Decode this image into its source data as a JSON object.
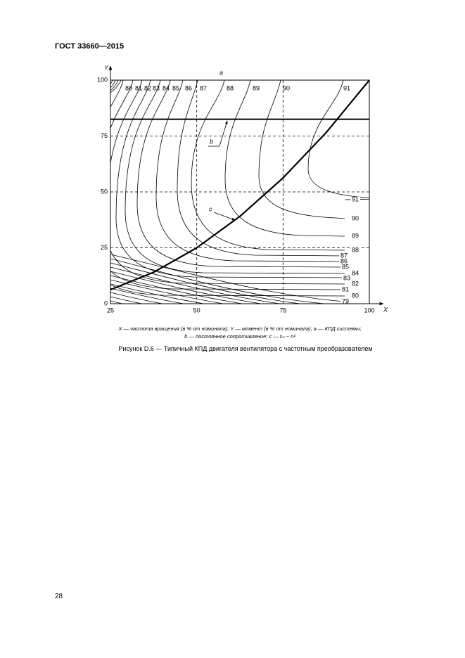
{
  "header": {
    "title": "ГОСТ 33660—2015"
  },
  "chart_data": {
    "type": "contour",
    "x_label": "X",
    "y_label": "Y",
    "xlim": [
      25,
      100
    ],
    "ylim": [
      0,
      100
    ],
    "xticks": [
      25,
      50,
      75,
      100
    ],
    "yticks": [
      0,
      25,
      50,
      75,
      100
    ],
    "grid": true,
    "top_labels": [
      80,
      81,
      82,
      83,
      84,
      85,
      86,
      87,
      88,
      89,
      90,
      91
    ],
    "right_labels": [
      91,
      90,
      89,
      88,
      87,
      86,
      85,
      84,
      83,
      82,
      81,
      80,
      79
    ],
    "annotations": {
      "a": "a",
      "b": "b",
      "c": "c"
    },
    "b_level": 82.5,
    "c_curve": {
      "x": [
        25,
        37.5,
        50,
        62.5,
        75,
        87.5,
        100
      ],
      "y": [
        6.25,
        14.06,
        25,
        39.06,
        56.25,
        76.56,
        100
      ]
    }
  },
  "legend_lines": [
    "X — частота вращения (в % от номинала); Y — момент (в % от номинала); a — КПД системы;",
    "b — постоянное сопротивление; c — tₘ ~ n²"
  ],
  "figure_caption": "Рисунок D.6 — Типичный КПД двигателя вентилятора с частотным преобразователем",
  "page_number": "28"
}
